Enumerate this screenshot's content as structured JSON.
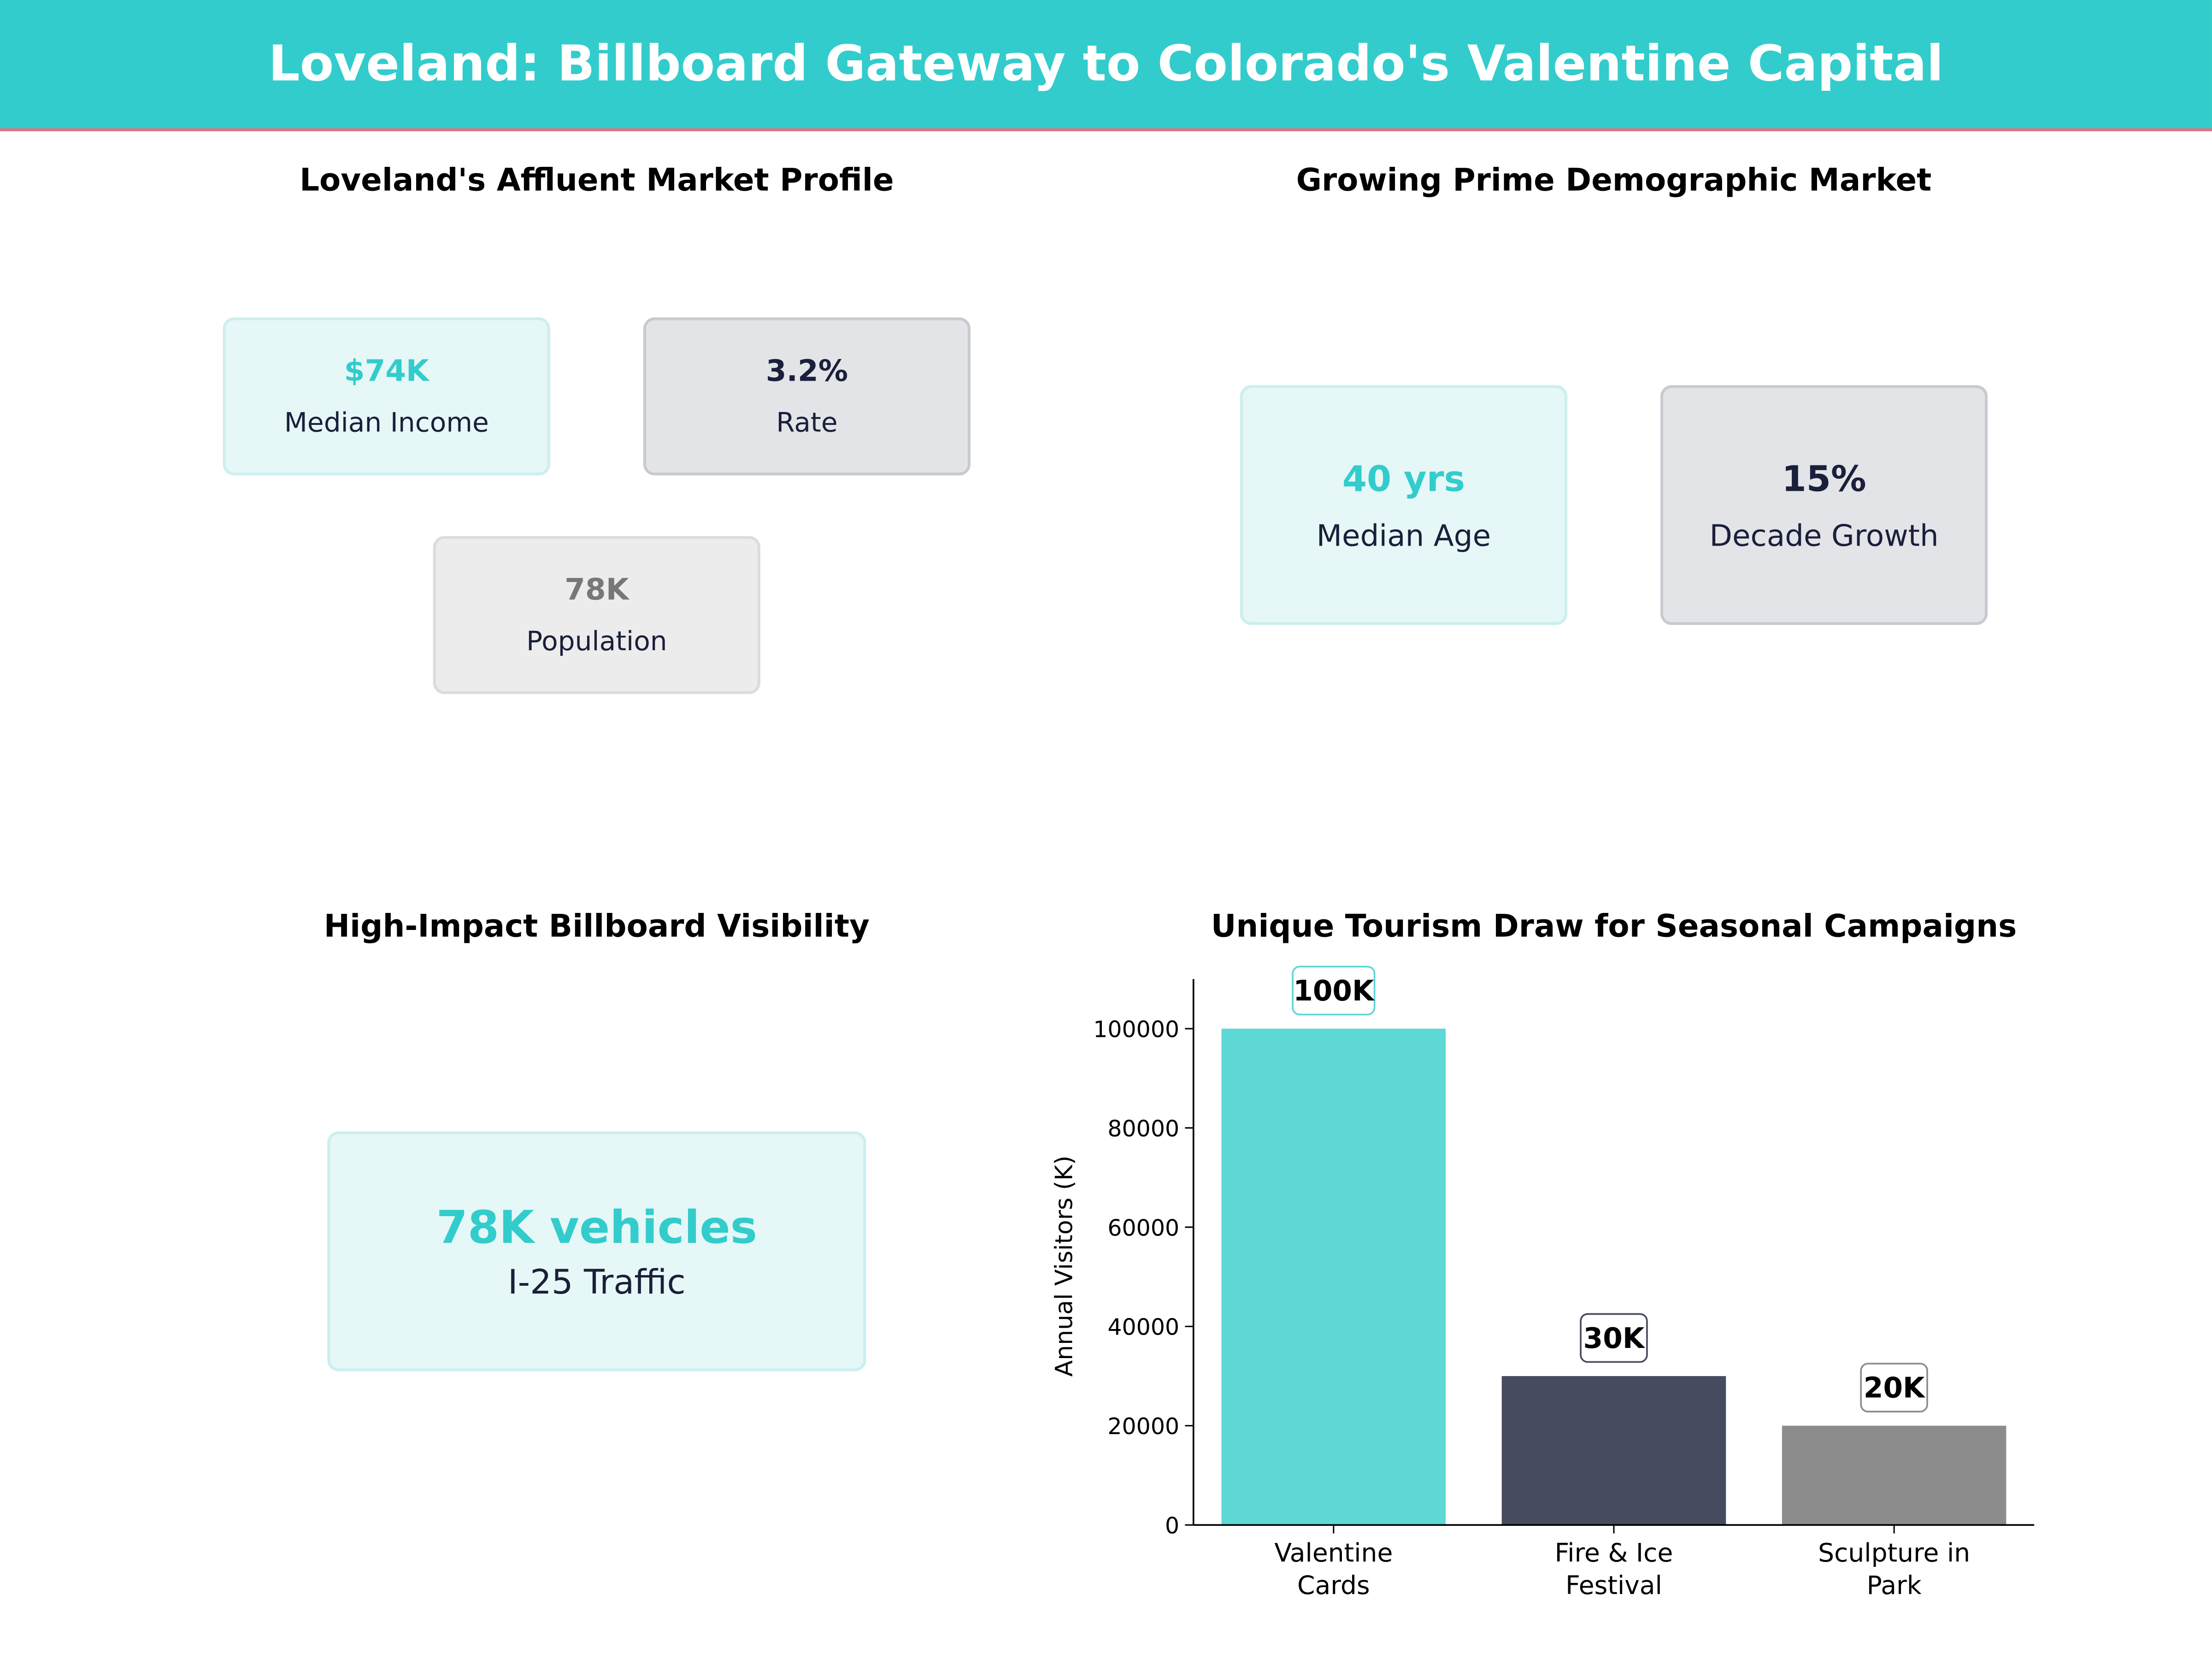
{
  "title": "Loveland: Billboard Gateway to Colorado's Valentine Capital",
  "panels": {
    "market_profile": {
      "title": "Loveland's Affluent Market Profile",
      "cards": [
        {
          "value": "$74K",
          "label": "Median Income"
        },
        {
          "value": "3.2%",
          "label": "Rate"
        },
        {
          "value": "78K",
          "label": "Population"
        }
      ]
    },
    "demographic": {
      "title": "Growing Prime Demographic Market",
      "cards": [
        {
          "value": "40 yrs",
          "label": "Median Age"
        },
        {
          "value": "15%",
          "label": "Decade Growth"
        }
      ]
    },
    "visibility": {
      "title": "High-Impact Billboard Visibility",
      "card": {
        "value": "78K vehicles",
        "label": "I-25 Traffic"
      }
    }
  },
  "colors": {
    "accent": "#33cccc",
    "navy": "#1a1f3a",
    "bar1": "#5dd8d5",
    "bar2": "#464b60",
    "bar3": "#8c8c8c",
    "header_border": "#e8707a"
  },
  "chart_data": {
    "type": "bar",
    "title": "Unique Tourism Draw for Seasonal Campaigns",
    "categories": [
      "Valentine\nCards",
      "Fire & Ice\nFestival",
      "Sculpture in\nPark"
    ],
    "values": [
      100000,
      30000,
      20000
    ],
    "data_labels": [
      "100K",
      "30K",
      "20K"
    ],
    "xlabel": "",
    "ylabel": "Annual Visitors (K)",
    "ylim": [
      0,
      110000
    ],
    "yticks": [
      0,
      20000,
      40000,
      60000,
      80000,
      100000
    ],
    "grid": false
  }
}
